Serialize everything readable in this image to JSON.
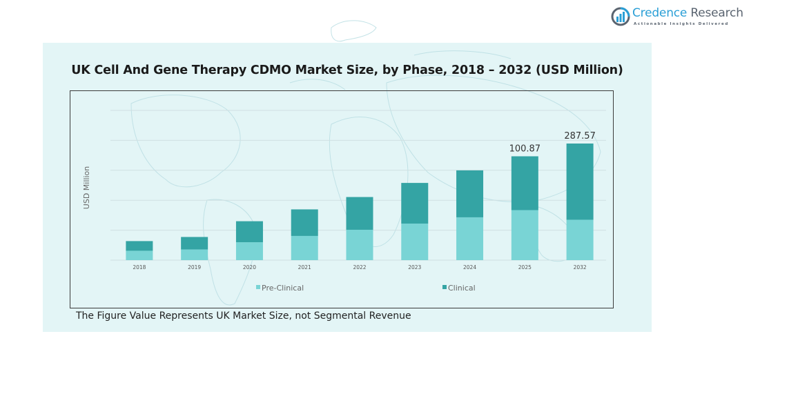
{
  "brand": {
    "name_part1": "Credence",
    "name_part2": " Research",
    "tagline": "Actionable Insights Delivered",
    "colors": {
      "primary": "#2a9fd6",
      "secondary": "#5a6470"
    }
  },
  "footnote": "The Figure Value Represents UK Market Size, not Segmental Revenue",
  "colors": {
    "pre_clinical": "#79d4d5",
    "clinical": "#34a4a4",
    "panel_bg": "#e3f5f6"
  },
  "chart_data": {
    "type": "bar",
    "stacked": true,
    "title": "UK Cell And Gene Therapy CDMO Market Size, by Phase, 2018 – 2032 (USD Million)",
    "xlabel": "",
    "ylabel": "USD Million",
    "categories": [
      "2018",
      "2019",
      "2020",
      "2021",
      "2022",
      "2023",
      "2024",
      "2025",
      "2032"
    ],
    "series": [
      {
        "name": "Pre-Clinical",
        "values": [
          9.1,
          10.4,
          17.4,
          23.5,
          29.5,
          35.5,
          41.6,
          48.6,
          99.6
        ]
      },
      {
        "name": "Clinical",
        "values": [
          9.4,
          12.1,
          20.4,
          25.8,
          31.8,
          39.5,
          45.6,
          52.27,
          187.97
        ]
      }
    ],
    "totals_labeled": {
      "2025": "100.87",
      "2032": "287.57"
    },
    "data_labels": [
      {
        "category": "2025",
        "text": "100.87"
      },
      {
        "category": "2032",
        "text": "287.57"
      }
    ],
    "y_ticks_visible": false,
    "gridlines": 5,
    "grid": true,
    "legend": {
      "position": "bottom",
      "entries": [
        "Pre-Clinical",
        "Clinical"
      ]
    },
    "note": "Bar heights are not drawn to linear scale in source; 2032 bar visually compressed"
  }
}
